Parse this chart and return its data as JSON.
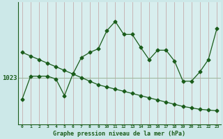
{
  "background_color": "#cce8e8",
  "plot_bg_color": "#d8eeee",
  "line_color": "#1a5c1a",
  "vgrid_color": "#c0a0a0",
  "hgrid_color": "#a0b8a0",
  "title": "Graphe pression niveau de la mer (hPa)",
  "ylabel_text": "1023",
  "ylabel_value": 1023,
  "x_labels": [
    "0",
    "1",
    "2",
    "3",
    "4",
    "5",
    "6",
    "7",
    "8",
    "9",
    "10",
    "11",
    "12",
    "13",
    "14",
    "15",
    "16",
    "17",
    "18",
    "19",
    "20",
    "21",
    "22",
    "23"
  ],
  "series1_x": [
    0,
    1,
    2,
    3,
    4,
    5,
    6,
    7,
    8,
    9,
    10,
    11,
    12,
    13,
    14,
    15,
    16,
    17,
    18,
    19,
    20,
    21,
    22,
    23
  ],
  "series1_y": [
    1020.0,
    1023.2,
    1023.2,
    1023.2,
    1022.8,
    1020.5,
    1023.5,
    1025.8,
    1026.5,
    1027.0,
    1029.5,
    1030.8,
    1029.0,
    1029.0,
    1027.2,
    1025.5,
    1026.8,
    1026.8,
    1025.3,
    1022.5,
    1022.5,
    1023.8,
    1025.5,
    1029.8
  ],
  "series2_x": [
    0,
    1,
    2,
    3,
    4,
    5,
    6,
    7,
    8,
    9,
    10,
    11,
    12,
    13,
    14,
    15,
    16,
    17,
    18,
    19,
    20,
    21,
    22,
    23
  ],
  "series2_y": [
    1026.5,
    1026.0,
    1025.5,
    1025.0,
    1024.5,
    1024.0,
    1023.5,
    1023.0,
    1022.5,
    1022.0,
    1021.7,
    1021.4,
    1021.1,
    1020.8,
    1020.5,
    1020.2,
    1019.9,
    1019.6,
    1019.3,
    1019.0,
    1018.8,
    1018.6,
    1018.5,
    1018.4
  ],
  "ylim_min": 1016.5,
  "ylim_max": 1033.5,
  "xlim_min": -0.5,
  "xlim_max": 23.5
}
